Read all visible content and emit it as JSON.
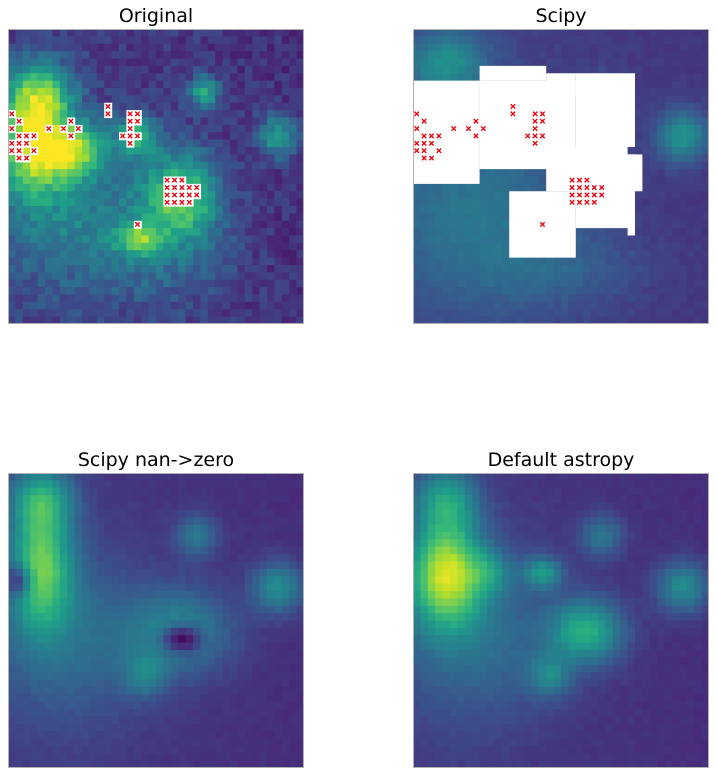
{
  "colors": {
    "bg": "#46307e",
    "hole": "#ffffff",
    "marker": "#e8000b",
    "frame": "#b0b0b0"
  },
  "chart_data": [
    {
      "type": "heatmap",
      "title": "Original",
      "xlabel": "",
      "ylabel": "",
      "grid": false,
      "colormap": "viridis",
      "zlim": [
        0,
        1
      ],
      "grid_size": [
        40,
        40
      ],
      "base_level": 0.18,
      "blobs": [
        {
          "x": 3,
          "y": 15,
          "sx": 3.5,
          "sy": 5,
          "amp": 0.75
        },
        {
          "x": 4,
          "y": 8,
          "sx": 3,
          "sy": 3,
          "amp": 0.45
        },
        {
          "x": 9,
          "y": 16,
          "sx": 3,
          "sy": 2.5,
          "amp": 0.5
        },
        {
          "x": 17,
          "y": 14,
          "sx": 2,
          "sy": 2,
          "amp": 0.45
        },
        {
          "x": 23,
          "y": 22,
          "sx": 3.5,
          "sy": 4,
          "amp": 0.55
        },
        {
          "x": 10,
          "y": 26,
          "sx": 9,
          "sy": 7,
          "amp": 0.25
        },
        {
          "x": 17,
          "y": 28,
          "sx": 2,
          "sy": 1.5,
          "amp": 0.4
        },
        {
          "x": 36,
          "y": 14,
          "sx": 2,
          "sy": 2,
          "amp": 0.4
        },
        {
          "x": 26,
          "y": 8,
          "sx": 1.5,
          "sy": 1.5,
          "amp": 0.45
        },
        {
          "x": 22,
          "y": 30,
          "sx": 6,
          "sy": 5,
          "amp": 0.12
        }
      ],
      "noise": 0.14,
      "nan_cells": [
        [
          0,
          11
        ],
        [
          1,
          12
        ],
        [
          0,
          13
        ],
        [
          1,
          14
        ],
        [
          2,
          14
        ],
        [
          3,
          14
        ],
        [
          0,
          15
        ],
        [
          1,
          15
        ],
        [
          2,
          15
        ],
        [
          0,
          16
        ],
        [
          1,
          16
        ],
        [
          3,
          16
        ],
        [
          1,
          17
        ],
        [
          2,
          17
        ],
        [
          5,
          13
        ],
        [
          8,
          12
        ],
        [
          7,
          13
        ],
        [
          9,
          13
        ],
        [
          8,
          14
        ],
        [
          13,
          10
        ],
        [
          13,
          11
        ],
        [
          16,
          11
        ],
        [
          17,
          11
        ],
        [
          16,
          12
        ],
        [
          17,
          12
        ],
        [
          16,
          13
        ],
        [
          15,
          14
        ],
        [
          16,
          14
        ],
        [
          17,
          14
        ],
        [
          16,
          15
        ],
        [
          21,
          20
        ],
        [
          22,
          20
        ],
        [
          23,
          20
        ],
        [
          21,
          21
        ],
        [
          22,
          21
        ],
        [
          23,
          21
        ],
        [
          24,
          21
        ],
        [
          25,
          21
        ],
        [
          21,
          22
        ],
        [
          22,
          22
        ],
        [
          23,
          22
        ],
        [
          24,
          22
        ],
        [
          25,
          22
        ],
        [
          21,
          23
        ],
        [
          22,
          23
        ],
        [
          23,
          23
        ],
        [
          24,
          23
        ],
        [
          17,
          26
        ]
      ]
    },
    {
      "type": "heatmap",
      "title": "Scipy",
      "xlabel": "",
      "ylabel": "",
      "grid": false,
      "colormap": "viridis",
      "zlim": [
        0,
        1
      ],
      "grid_size": [
        40,
        40
      ],
      "base_level": 0.2,
      "blobs": [
        {
          "x": 4,
          "y": 4,
          "sx": 4,
          "sy": 3,
          "amp": 0.3
        },
        {
          "x": 8,
          "y": 24,
          "sx": 9,
          "sy": 9,
          "amp": 0.2
        },
        {
          "x": 25,
          "y": 9,
          "sx": 2,
          "sy": 2,
          "amp": 0.25
        },
        {
          "x": 36,
          "y": 14,
          "sx": 2.5,
          "sy": 2.5,
          "amp": 0.35
        },
        {
          "x": 20,
          "y": 32,
          "sx": 8,
          "sy": 4,
          "amp": 0.1
        }
      ],
      "noise": 0.04,
      "nan_rects": [
        [
          0,
          7,
          9,
          21
        ],
        [
          9,
          7,
          22,
          19
        ],
        [
          9,
          5,
          18,
          7
        ],
        [
          18,
          6,
          22,
          9
        ],
        [
          22,
          6,
          30,
          16
        ],
        [
          13,
          22,
          22,
          31
        ],
        [
          18,
          16,
          29,
          22
        ],
        [
          29,
          17,
          30,
          28
        ],
        [
          30,
          21,
          22,
          27
        ],
        [
          22,
          17,
          31,
          22
        ]
      ],
      "nan_rect_note": "",
      "nan_cells": [
        [
          0,
          11
        ],
        [
          1,
          12
        ],
        [
          0,
          13
        ],
        [
          1,
          14
        ],
        [
          2,
          14
        ],
        [
          3,
          14
        ],
        [
          0,
          15
        ],
        [
          1,
          15
        ],
        [
          2,
          15
        ],
        [
          0,
          16
        ],
        [
          1,
          16
        ],
        [
          3,
          16
        ],
        [
          1,
          17
        ],
        [
          2,
          17
        ],
        [
          5,
          13
        ],
        [
          8,
          12
        ],
        [
          7,
          13
        ],
        [
          9,
          13
        ],
        [
          8,
          14
        ],
        [
          13,
          10
        ],
        [
          13,
          11
        ],
        [
          16,
          11
        ],
        [
          17,
          11
        ],
        [
          16,
          12
        ],
        [
          17,
          12
        ],
        [
          16,
          13
        ],
        [
          15,
          14
        ],
        [
          16,
          14
        ],
        [
          17,
          14
        ],
        [
          16,
          15
        ],
        [
          21,
          20
        ],
        [
          22,
          20
        ],
        [
          23,
          20
        ],
        [
          21,
          21
        ],
        [
          22,
          21
        ],
        [
          23,
          21
        ],
        [
          24,
          21
        ],
        [
          25,
          21
        ],
        [
          21,
          22
        ],
        [
          22,
          22
        ],
        [
          23,
          22
        ],
        [
          24,
          22
        ],
        [
          25,
          22
        ],
        [
          21,
          23
        ],
        [
          22,
          23
        ],
        [
          23,
          23
        ],
        [
          24,
          23
        ],
        [
          17,
          26
        ]
      ]
    },
    {
      "type": "heatmap",
      "title": "Scipy nan->zero",
      "xlabel": "",
      "ylabel": "",
      "grid": false,
      "colormap": "viridis",
      "zlim": [
        0,
        1
      ],
      "grid_size": [
        40,
        40
      ],
      "base_level": 0.17,
      "blobs": [
        {
          "x": 4,
          "y": 12,
          "sx": 3,
          "sy": 6,
          "amp": 0.55
        },
        {
          "x": 4,
          "y": 3,
          "sx": 3,
          "sy": 3,
          "amp": 0.35
        },
        {
          "x": 8,
          "y": 22,
          "sx": 8,
          "sy": 8,
          "amp": 0.2
        },
        {
          "x": 23,
          "y": 21,
          "sx": 5,
          "sy": 4,
          "amp": 0.3
        },
        {
          "x": 25,
          "y": 8,
          "sx": 2,
          "sy": 2,
          "amp": 0.25
        },
        {
          "x": 36,
          "y": 15,
          "sx": 2.5,
          "sy": 2.5,
          "amp": 0.35
        },
        {
          "x": 18,
          "y": 27,
          "sx": 2,
          "sy": 2,
          "amp": 0.2
        },
        {
          "x": 1,
          "y": 14,
          "sx": 1.2,
          "sy": 1.5,
          "amp": -0.35
        },
        {
          "x": 23,
          "y": 22,
          "sx": 1.8,
          "sy": 1.3,
          "amp": -0.45
        }
      ],
      "noise": 0.03
    },
    {
      "type": "heatmap",
      "title": "Default astropy",
      "xlabel": "",
      "ylabel": "",
      "grid": false,
      "colormap": "viridis",
      "zlim": [
        0,
        1
      ],
      "grid_size": [
        40,
        40
      ],
      "base_level": 0.17,
      "blobs": [
        {
          "x": 4,
          "y": 13,
          "sx": 3.5,
          "sy": 5,
          "amp": 0.7
        },
        {
          "x": 4,
          "y": 3,
          "sx": 3,
          "sy": 3,
          "amp": 0.35
        },
        {
          "x": 8,
          "y": 22,
          "sx": 8,
          "sy": 8,
          "amp": 0.2
        },
        {
          "x": 23,
          "y": 21,
          "sx": 3.5,
          "sy": 3,
          "amp": 0.45
        },
        {
          "x": 17,
          "y": 13,
          "sx": 1.8,
          "sy": 1.5,
          "amp": 0.35
        },
        {
          "x": 25,
          "y": 8,
          "sx": 2,
          "sy": 2,
          "amp": 0.25
        },
        {
          "x": 36,
          "y": 15,
          "sx": 2.5,
          "sy": 2.5,
          "amp": 0.35
        },
        {
          "x": 18,
          "y": 27,
          "sx": 2,
          "sy": 2,
          "amp": 0.25
        },
        {
          "x": 10,
          "y": 13,
          "sx": 2,
          "sy": 2,
          "amp": 0.2
        }
      ],
      "noise": 0.03
    }
  ]
}
